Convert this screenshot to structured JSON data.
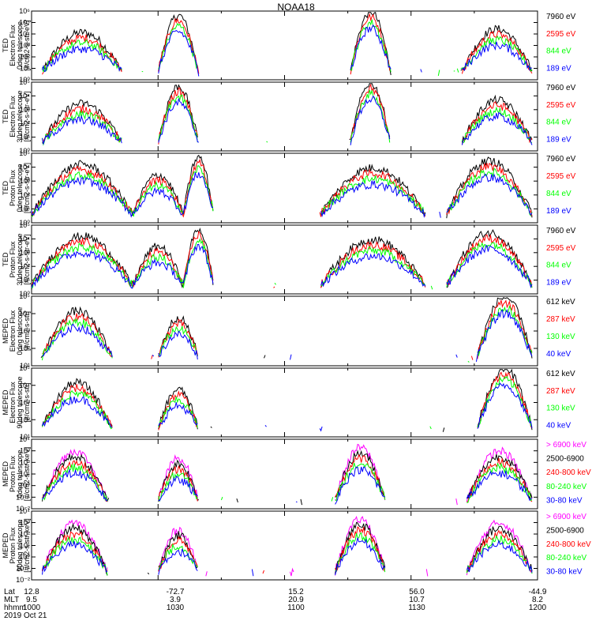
{
  "title": "NOAA18",
  "date": "2019 Oct 21",
  "footer": {
    "row_labels": [
      "Lat",
      "MLT",
      "hhmm"
    ],
    "columns": [
      {
        "lat": "12.8",
        "mlt": "9.5",
        "hhmm": "1000"
      },
      {
        "lat": "-72.7",
        "mlt": "3.9",
        "hhmm": "1030"
      },
      {
        "lat": "15.2",
        "mlt": "20.9",
        "hhmm": "1100"
      },
      {
        "lat": "56.0",
        "mlt": "10.7",
        "hhmm": "1130"
      },
      {
        "lat": "-44.9",
        "mlt": "8.2",
        "hhmm": "1200"
      }
    ]
  },
  "colors": {
    "black": "#000000",
    "red": "#ff0000",
    "green": "#00ff00",
    "blue": "#0000ff",
    "magenta": "#ff00ff"
  },
  "chart_data": [
    {
      "type": "line",
      "instrument": "TED",
      "ylabel": [
        "TED",
        "Electron Flux",
        "0deg telescope",
        "[#/cm2-s-str-eV]"
      ],
      "ylog": true,
      "ylim_exp": [
        0,
        6
      ],
      "legend": [
        {
          "name": "7960 eV",
          "color": "#000000"
        },
        {
          "name": "2595 eV",
          "color": "#ff0000"
        },
        {
          "name": "844 eV",
          "color": "#00ff00"
        },
        {
          "name": "189 eV",
          "color": "#0000ff"
        }
      ]
    },
    {
      "type": "line",
      "instrument": "TED",
      "ylabel": [
        "TED",
        "Electron Flux",
        "30deg telescope",
        "[#/cm2-s-str-eV]"
      ],
      "ylog": true,
      "ylim_exp": [
        0,
        5
      ],
      "legend": [
        {
          "name": "7960 eV",
          "color": "#000000"
        },
        {
          "name": "2595 eV",
          "color": "#ff0000"
        },
        {
          "name": "844 eV",
          "color": "#00ff00"
        },
        {
          "name": "189 eV",
          "color": "#0000ff"
        }
      ]
    },
    {
      "type": "line",
      "instrument": "TED",
      "ylabel": [
        "TED",
        "Proton Flux",
        "0deg telescope",
        "[#/cm2-s-str-eV]"
      ],
      "ylog": true,
      "ylim_exp": [
        0,
        5
      ],
      "legend": [
        {
          "name": "7960 eV",
          "color": "#000000"
        },
        {
          "name": "2595 eV",
          "color": "#ff0000"
        },
        {
          "name": "844 eV",
          "color": "#00ff00"
        },
        {
          "name": "189 eV",
          "color": "#0000ff"
        }
      ]
    },
    {
      "type": "line",
      "instrument": "TED",
      "ylabel": [
        "TED",
        "Proton Flux",
        "30deg telescope",
        "[#/cm2-s-str-eV]"
      ],
      "ylog": true,
      "ylim_exp": [
        0,
        5
      ],
      "legend": [
        {
          "name": "7960 eV",
          "color": "#000000"
        },
        {
          "name": "2595 eV",
          "color": "#ff0000"
        },
        {
          "name": "844 eV",
          "color": "#00ff00"
        },
        {
          "name": "189 eV",
          "color": "#0000ff"
        }
      ]
    },
    {
      "type": "line",
      "instrument": "MEPED",
      "ylabel": [
        "MEPED",
        "Electron Flux",
        "0deg telescope",
        "[#/cm2-s-str]"
      ],
      "ylog": true,
      "ylim_exp": [
        1,
        5
      ],
      "legend": [
        {
          "name": "612 keV",
          "color": "#000000"
        },
        {
          "name": "287 keV",
          "color": "#ff0000"
        },
        {
          "name": "130 keV",
          "color": "#00ff00"
        },
        {
          "name": "40 keV",
          "color": "#0000ff"
        }
      ]
    },
    {
      "type": "line",
      "instrument": "MEPED",
      "ylabel": [
        "MEPED",
        "Electron Flux",
        "90deg telescope",
        "[#/cm2-s-str]"
      ],
      "ylog": true,
      "ylim_exp": [
        1,
        5
      ],
      "legend": [
        {
          "name": "612 keV",
          "color": "#000000"
        },
        {
          "name": "287 keV",
          "color": "#ff0000"
        },
        {
          "name": "130 keV",
          "color": "#00ff00"
        },
        {
          "name": "40 keV",
          "color": "#0000ff"
        }
      ]
    },
    {
      "type": "line",
      "instrument": "MEPED",
      "ylabel": [
        "MEPED",
        "Proton Flux",
        "0deg telescope",
        "[#/cm2-s-str-keV]"
      ],
      "ylog": true,
      "ylim_exp": [
        -2,
        4
      ],
      "legend": [
        {
          "name": "> 6900 keV",
          "color": "#ff00ff"
        },
        {
          "name": "2500-6900",
          "color": "#000000"
        },
        {
          "name": "240-800 keV",
          "color": "#ff0000"
        },
        {
          "name": "80-240 keV",
          "color": "#00ff00"
        },
        {
          "name": "30-80 keV",
          "color": "#0000ff"
        }
      ]
    },
    {
      "type": "line",
      "instrument": "MEPED",
      "ylabel": [
        "MEPED",
        "Proton Flux",
        "90deg telescope",
        "[#/cm2-s-str-keV]"
      ],
      "ylog": true,
      "ylim_exp": [
        -2,
        4
      ],
      "legend": [
        {
          "name": "> 6900 keV",
          "color": "#ff00ff"
        },
        {
          "name": "2500-6900",
          "color": "#000000"
        },
        {
          "name": "240-800 keV",
          "color": "#ff0000"
        },
        {
          "name": "80-240 keV",
          "color": "#00ff00"
        },
        {
          "name": "30-80 keV",
          "color": "#0000ff"
        }
      ]
    }
  ]
}
